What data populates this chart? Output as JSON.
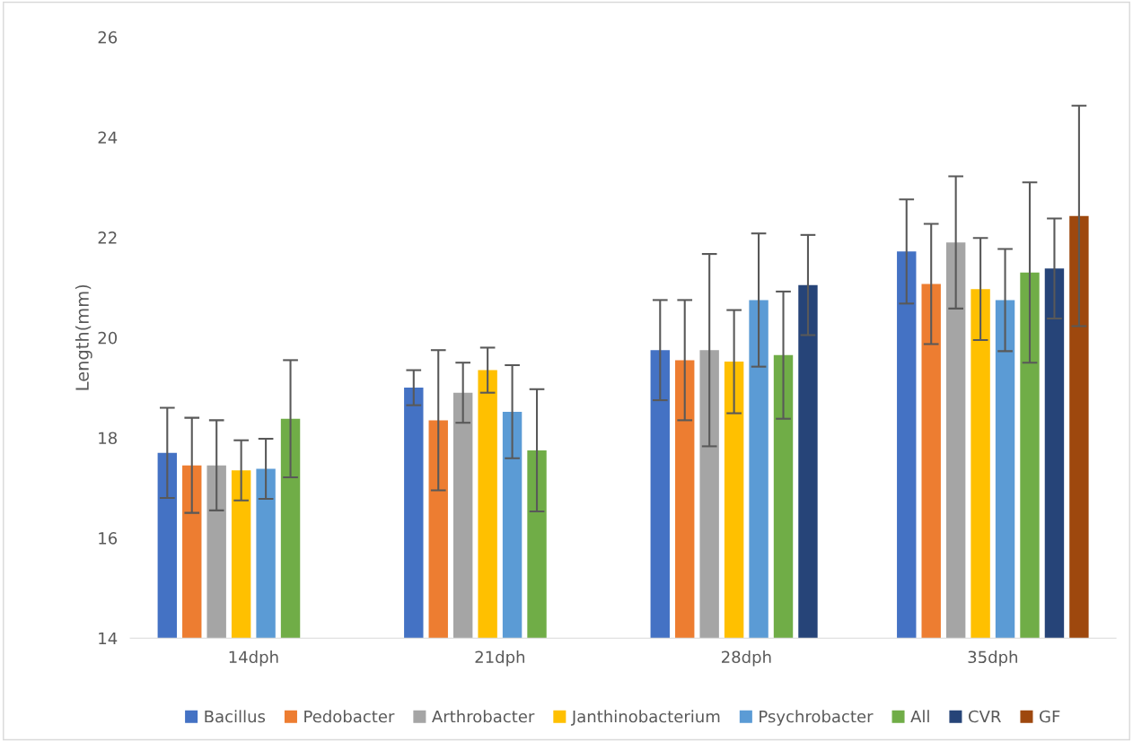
{
  "chart_data": {
    "type": "bar",
    "ylabel": "Length(mm)",
    "categories": [
      "14dph",
      "21dph",
      "28dph",
      "35dph"
    ],
    "ylim": [
      14,
      26
    ],
    "yticks": [
      14,
      16,
      18,
      20,
      22,
      24,
      26
    ],
    "grid": false,
    "legend": "bottom",
    "series": [
      {
        "name": "Bacillus",
        "color": "#4472c4",
        "values": [
          17.7,
          19.0,
          19.75,
          21.72
        ],
        "errors": [
          0.9,
          0.35,
          1.0,
          1.04
        ]
      },
      {
        "name": "Pedobacter",
        "color": "#ed7d31",
        "values": [
          17.45,
          18.35,
          19.55,
          21.07
        ],
        "errors": [
          0.95,
          1.4,
          1.2,
          1.2
        ]
      },
      {
        "name": "Arthrobacter",
        "color": "#a5a5a5",
        "values": [
          17.45,
          18.9,
          19.75,
          21.9
        ],
        "errors": [
          0.9,
          0.6,
          1.92,
          1.32
        ]
      },
      {
        "name": "Janthinobacterium",
        "color": "#ffc000",
        "values": [
          17.35,
          19.35,
          19.52,
          20.97
        ],
        "errors": [
          0.6,
          0.45,
          1.03,
          1.02
        ]
      },
      {
        "name": "Psychrobacter",
        "color": "#5b9bd5",
        "values": [
          17.38,
          18.52,
          20.75,
          20.75
        ],
        "errors": [
          0.6,
          0.93,
          1.33,
          1.02
        ]
      },
      {
        "name": "All",
        "color": "#70ad47",
        "values": [
          18.38,
          17.75,
          19.65,
          21.3
        ],
        "errors": [
          1.17,
          1.22,
          1.27,
          1.8
        ]
      },
      {
        "name": "CVR",
        "color": "#264478",
        "values": [
          null,
          null,
          21.05,
          21.38
        ],
        "errors": [
          null,
          null,
          1.0,
          1.0
        ]
      },
      {
        "name": "GF",
        "color": "#9e480e",
        "values": [
          null,
          null,
          null,
          22.43
        ],
        "errors": [
          null,
          null,
          null,
          2.2
        ]
      }
    ]
  }
}
